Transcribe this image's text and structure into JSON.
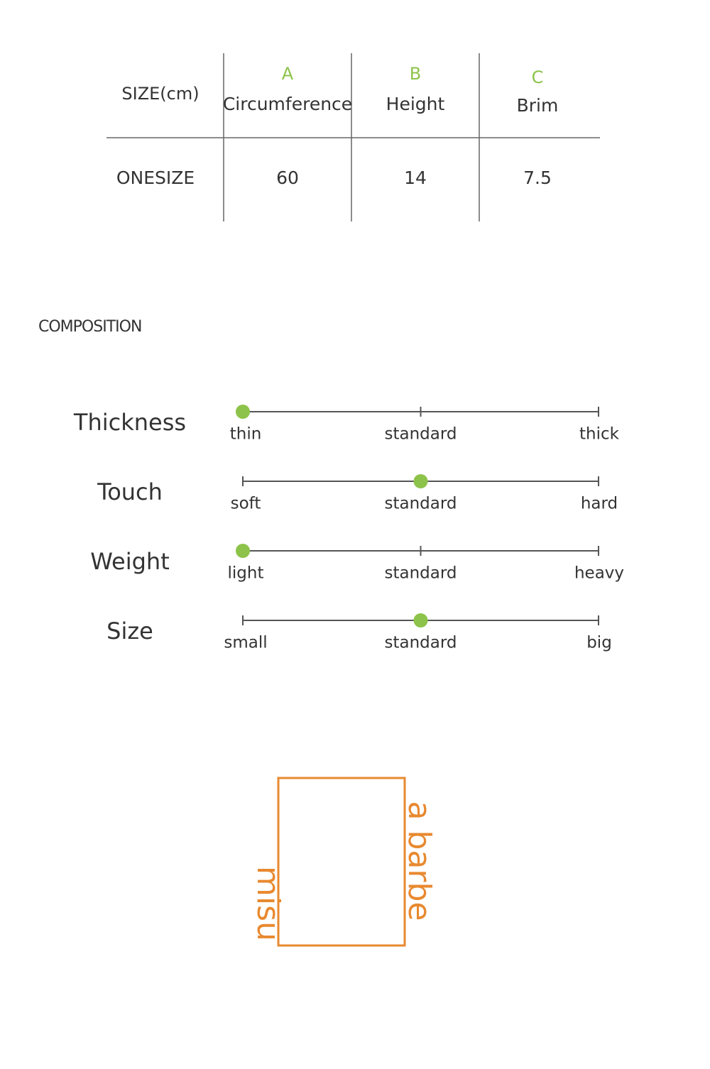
{
  "table": {
    "header": [
      {
        "label": "SIZE(cm)"
      },
      {
        "letter": "A",
        "label": "Circumference"
      },
      {
        "letter": "B",
        "label": "Height"
      },
      {
        "letter": "C",
        "label": "Brim"
      }
    ],
    "rows": [
      [
        "ONESIZE",
        60,
        14,
        7.5
      ]
    ]
  },
  "composition": {
    "title": "COMPOSITION",
    "scales": [
      {
        "label": "Thickness",
        "options": [
          "thin",
          "standard",
          "thick"
        ],
        "selected": 0
      },
      {
        "label": "Touch",
        "options": [
          "soft",
          "standard",
          "hard"
        ],
        "selected": 1
      },
      {
        "label": "Weight",
        "options": [
          "light",
          "standard",
          "heavy"
        ],
        "selected": 0
      },
      {
        "label": "Size",
        "options": [
          "small",
          "standard",
          "big"
        ],
        "selected": 1
      }
    ]
  },
  "logo": {
    "right": "a barbe",
    "left": "misu"
  }
}
